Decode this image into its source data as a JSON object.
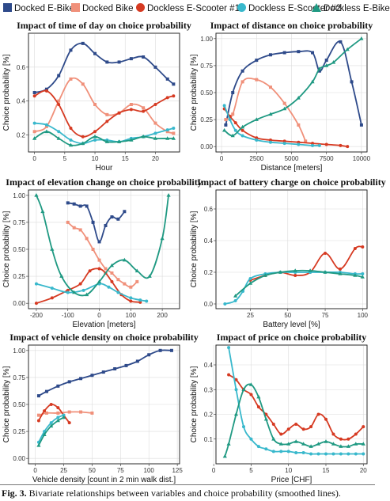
{
  "legend": [
    {
      "label": "Docked E-Bike",
      "color": "#2e4a8a",
      "shape": "square"
    },
    {
      "label": "Docked Bike",
      "color": "#f0907a",
      "shape": "square"
    },
    {
      "label": "Dockless E-Scooter #1",
      "color": "#d63a22",
      "shape": "circle"
    },
    {
      "label": "Dockless E-Scooter #2",
      "color": "#38b8cc",
      "shape": "circle"
    },
    {
      "label": "Dockless E-Bike",
      "color": "#1f9982",
      "shape": "triangle"
    }
  ],
  "caption": {
    "label": "Fig. 3.",
    "text": "Bivariate relationships between variables and choice probability (smoothed lines)."
  },
  "chart_data": [
    {
      "type": "line",
      "title": "Impact of time of day on choice probability",
      "xlabel": "Hour",
      "ylabel": "Choice probability [%]",
      "xlim": [
        -1,
        24
      ],
      "ylim": [
        0.1,
        0.8
      ],
      "xticks": [
        0,
        5,
        10,
        15,
        20
      ],
      "yticks": [
        0.2,
        0.4,
        0.6
      ],
      "series": [
        {
          "name": "Docked E-Bike",
          "x": [
            0,
            2,
            4,
            6,
            8,
            10,
            12,
            14,
            16,
            18,
            20,
            22,
            23
          ],
          "y": [
            0.45,
            0.47,
            0.55,
            0.7,
            0.74,
            0.68,
            0.63,
            0.63,
            0.65,
            0.66,
            0.6,
            0.53,
            0.5
          ]
        },
        {
          "name": "Docked Bike",
          "x": [
            0,
            2,
            4,
            6,
            8,
            10,
            12,
            14,
            16,
            18,
            20,
            22,
            23
          ],
          "y": [
            0.22,
            0.25,
            0.4,
            0.53,
            0.5,
            0.38,
            0.32,
            0.33,
            0.38,
            0.36,
            0.27,
            0.22,
            0.21
          ]
        },
        {
          "name": "Dockless E-Scooter #1",
          "x": [
            0,
            2,
            4,
            6,
            8,
            10,
            12,
            14,
            16,
            18,
            20,
            22,
            23
          ],
          "y": [
            0.43,
            0.46,
            0.38,
            0.24,
            0.19,
            0.22,
            0.28,
            0.33,
            0.35,
            0.34,
            0.38,
            0.42,
            0.43
          ]
        },
        {
          "name": "Dockless E-Scooter #2",
          "x": [
            0,
            2,
            4,
            6,
            8,
            10,
            12,
            14,
            16,
            18,
            20,
            22,
            23
          ],
          "y": [
            0.27,
            0.26,
            0.22,
            0.17,
            0.15,
            0.17,
            0.17,
            0.16,
            0.18,
            0.19,
            0.21,
            0.23,
            0.24
          ]
        },
        {
          "name": "Dockless E-Bike",
          "x": [
            0,
            2,
            4,
            6,
            8,
            10,
            12,
            14,
            16,
            18,
            20,
            22,
            23
          ],
          "y": [
            0.18,
            0.22,
            0.18,
            0.14,
            0.15,
            0.19,
            0.16,
            0.16,
            0.17,
            0.19,
            0.18,
            0.18,
            0.18
          ]
        }
      ]
    },
    {
      "type": "line",
      "title": "Impact of distance on choice probability",
      "xlabel": "Distance [meters]",
      "ylabel": "Choice probability [%]",
      "xlim": [
        -400,
        10400
      ],
      "ylim": [
        -0.05,
        1.05
      ],
      "xticks": [
        0,
        2500,
        5000,
        7500,
        10000
      ],
      "yticks": [
        0.0,
        0.25,
        0.5,
        0.75,
        1.0
      ],
      "series": [
        {
          "name": "Docked E-Bike",
          "x": [
            300,
            800,
            1500,
            2500,
            3500,
            4500,
            5500,
            6500,
            7000,
            7500,
            8500,
            9300,
            10000
          ],
          "y": [
            0.2,
            0.5,
            0.7,
            0.8,
            0.85,
            0.87,
            0.88,
            0.87,
            0.7,
            0.8,
            0.97,
            0.6,
            0.2
          ]
        },
        {
          "name": "Docked Bike",
          "x": [
            300,
            800,
            1500,
            2500,
            3500,
            4500,
            5500,
            6000
          ],
          "y": [
            0.25,
            0.3,
            0.6,
            0.62,
            0.55,
            0.4,
            0.2,
            0.05
          ]
        },
        {
          "name": "Dockless E-Scooter #1",
          "x": [
            200,
            600,
            1000,
            1500,
            2500,
            3500,
            4500,
            5500,
            6500,
            7500,
            8500,
            9000
          ],
          "y": [
            0.35,
            0.28,
            0.22,
            0.15,
            0.08,
            0.06,
            0.05,
            0.04,
            0.03,
            0.02,
            0.01,
            0.0
          ]
        },
        {
          "name": "Dockless E-Scooter #2",
          "x": [
            200,
            600,
            1000,
            1500,
            2500,
            3500,
            4500,
            5500,
            6500,
            7000
          ],
          "y": [
            0.38,
            0.25,
            0.15,
            0.1,
            0.06,
            0.04,
            0.03,
            0.02,
            0.01,
            0.01
          ]
        },
        {
          "name": "Dockless E-Bike",
          "x": [
            200,
            800,
            1500,
            2500,
            3500,
            4500,
            5500,
            6500,
            7000,
            7500,
            8000,
            9000,
            10000
          ],
          "y": [
            0.15,
            0.1,
            0.18,
            0.25,
            0.3,
            0.35,
            0.45,
            0.6,
            0.72,
            0.75,
            0.78,
            0.9,
            1.0
          ]
        }
      ]
    },
    {
      "type": "line",
      "title": "Impact of elevation change on choice probability",
      "xlabel": "Elevation [meters]",
      "ylabel": "Choice probability [%]",
      "xlim": [
        -225,
        255
      ],
      "ylim": [
        -0.05,
        1.05
      ],
      "xticks": [
        -200,
        -100,
        0,
        100,
        200
      ],
      "yticks": [
        0.0,
        0.25,
        0.5,
        0.75,
        1.0
      ],
      "series": [
        {
          "name": "Docked E-Bike",
          "x": [
            -100,
            -80,
            -60,
            -40,
            -20,
            0,
            20,
            40,
            60,
            80
          ],
          "y": [
            0.93,
            0.92,
            0.9,
            0.9,
            0.75,
            0.57,
            0.72,
            0.8,
            0.78,
            0.85
          ]
        },
        {
          "name": "Docked Bike",
          "x": [
            -100,
            -80,
            -60,
            -40,
            -20,
            0,
            20,
            40,
            60,
            80,
            100,
            120
          ],
          "y": [
            0.75,
            0.7,
            0.68,
            0.6,
            0.5,
            0.4,
            0.32,
            0.28,
            0.22,
            0.18,
            0.15,
            0.2
          ]
        },
        {
          "name": "Dockless E-Scooter #1",
          "x": [
            -200,
            -150,
            -100,
            -60,
            -30,
            0,
            20,
            40,
            70,
            100,
            130
          ],
          "y": [
            0.0,
            0.05,
            0.12,
            0.18,
            0.3,
            0.32,
            0.28,
            0.2,
            0.08,
            0.02,
            0.01
          ]
        },
        {
          "name": "Dockless E-Scooter #2",
          "x": [
            -200,
            -150,
            -100,
            -50,
            0,
            30,
            60,
            100,
            130,
            150
          ],
          "y": [
            0.18,
            0.14,
            0.1,
            0.12,
            0.18,
            0.15,
            0.1,
            0.05,
            0.03,
            0.02
          ]
        },
        {
          "name": "Dockless E-Bike",
          "x": [
            -200,
            -180,
            -150,
            -120,
            -80,
            -40,
            0,
            40,
            80,
            120,
            160,
            200,
            220
          ],
          "y": [
            1.0,
            0.85,
            0.5,
            0.25,
            0.1,
            0.08,
            0.2,
            0.35,
            0.4,
            0.3,
            0.25,
            0.6,
            1.0
          ]
        }
      ]
    },
    {
      "type": "line",
      "title": "Impact of battery charge on choice probability",
      "xlabel": "Battery level [%]",
      "ylabel": "Choice probability [%]",
      "xlim": [
        2,
        103
      ],
      "ylim": [
        -0.03,
        0.72
      ],
      "xticks": [
        25,
        50,
        75,
        100
      ],
      "yticks": [
        0.0,
        0.2,
        0.4,
        0.6
      ],
      "series": [
        {
          "name": "Dockless E-Scooter #1",
          "x": [
            25,
            35,
            45,
            55,
            65,
            75,
            85,
            95,
            100
          ],
          "y": [
            0.15,
            0.18,
            0.2,
            0.18,
            0.2,
            0.32,
            0.22,
            0.35,
            0.36
          ]
        },
        {
          "name": "Dockless E-Scooter #2",
          "x": [
            8,
            15,
            20,
            25,
            35,
            45,
            55,
            65,
            75,
            85,
            95,
            100
          ],
          "y": [
            0.0,
            0.02,
            0.08,
            0.16,
            0.19,
            0.2,
            0.2,
            0.2,
            0.2,
            0.2,
            0.19,
            0.19
          ]
        },
        {
          "name": "Dockless E-Bike",
          "x": [
            15,
            25,
            35,
            45,
            55,
            65,
            75,
            85,
            95,
            100
          ],
          "y": [
            0.05,
            0.13,
            0.18,
            0.2,
            0.21,
            0.21,
            0.2,
            0.19,
            0.18,
            0.17
          ]
        }
      ]
    },
    {
      "type": "line",
      "title": "Impact of vehicle density on choice probability",
      "xlabel": "Vehicle density [count in 2 min walk dist.]",
      "ylabel": "Choice probability [%]",
      "xlim": [
        -6,
        127
      ],
      "ylim": [
        -0.05,
        1.05
      ],
      "xticks": [
        0,
        25,
        50,
        75,
        100,
        125
      ],
      "yticks": [
        0.0,
        0.25,
        0.5,
        0.75,
        1.0
      ],
      "series": [
        {
          "name": "Docked E-Bike",
          "x": [
            3,
            10,
            20,
            30,
            40,
            50,
            60,
            70,
            80,
            90,
            100,
            110,
            120
          ],
          "y": [
            0.58,
            0.62,
            0.67,
            0.71,
            0.74,
            0.77,
            0.8,
            0.83,
            0.86,
            0.9,
            0.96,
            1.0,
            1.0
          ]
        },
        {
          "name": "Docked Bike",
          "x": [
            3,
            10,
            20,
            30,
            40,
            50
          ],
          "y": [
            0.4,
            0.42,
            0.42,
            0.43,
            0.43,
            0.42
          ]
        },
        {
          "name": "Dockless E-Scooter #1",
          "x": [
            3,
            8,
            14,
            20,
            25,
            30
          ],
          "y": [
            0.35,
            0.44,
            0.5,
            0.47,
            0.4,
            0.33
          ]
        },
        {
          "name": "Dockless E-Scooter #2",
          "x": [
            3,
            8,
            14,
            20,
            25
          ],
          "y": [
            0.15,
            0.25,
            0.33,
            0.38,
            0.4
          ]
        },
        {
          "name": "Dockless E-Bike",
          "x": [
            3,
            8,
            14,
            20,
            25
          ],
          "y": [
            0.12,
            0.22,
            0.3,
            0.35,
            0.38
          ]
        }
      ]
    },
    {
      "type": "line",
      "title": "Impact of price on choice probability",
      "xlabel": "Price [CHF]",
      "ylabel": "Choice probability [%]",
      "xlim": [
        0.3,
        20.5
      ],
      "ylim": [
        0.0,
        0.48
      ],
      "xticks": [
        0,
        5,
        10,
        15,
        20
      ],
      "yticks": [
        0.1,
        0.2,
        0.3,
        0.4
      ],
      "series": [
        {
          "name": "Dockless E-Scooter #1",
          "x": [
            2,
            3,
            4,
            5,
            6,
            7,
            8,
            9,
            10,
            11,
            12,
            13,
            14,
            15,
            16,
            17,
            18,
            19,
            20
          ],
          "y": [
            0.36,
            0.34,
            0.3,
            0.28,
            0.23,
            0.2,
            0.16,
            0.12,
            0.14,
            0.16,
            0.14,
            0.15,
            0.2,
            0.18,
            0.12,
            0.1,
            0.1,
            0.12,
            0.15
          ]
        },
        {
          "name": "Dockless E-Scooter #2",
          "x": [
            2,
            3,
            4,
            5,
            6,
            7,
            8,
            9,
            10,
            11,
            12,
            13,
            14,
            15,
            16,
            17,
            18,
            19,
            20
          ],
          "y": [
            0.47,
            0.3,
            0.15,
            0.1,
            0.07,
            0.06,
            0.05,
            0.05,
            0.05,
            0.045,
            0.045,
            0.04,
            0.04,
            0.04,
            0.04,
            0.04,
            0.04,
            0.04,
            0.04
          ]
        },
        {
          "name": "Dockless E-Bike",
          "x": [
            1.5,
            2,
            3,
            4,
            5,
            6,
            7,
            8,
            9,
            10,
            11,
            12,
            13,
            14,
            15,
            16,
            17,
            18,
            19,
            20
          ],
          "y": [
            0.03,
            0.08,
            0.2,
            0.3,
            0.32,
            0.27,
            0.18,
            0.1,
            0.08,
            0.08,
            0.09,
            0.08,
            0.07,
            0.08,
            0.09,
            0.08,
            0.07,
            0.07,
            0.08,
            0.08
          ]
        }
      ]
    }
  ]
}
